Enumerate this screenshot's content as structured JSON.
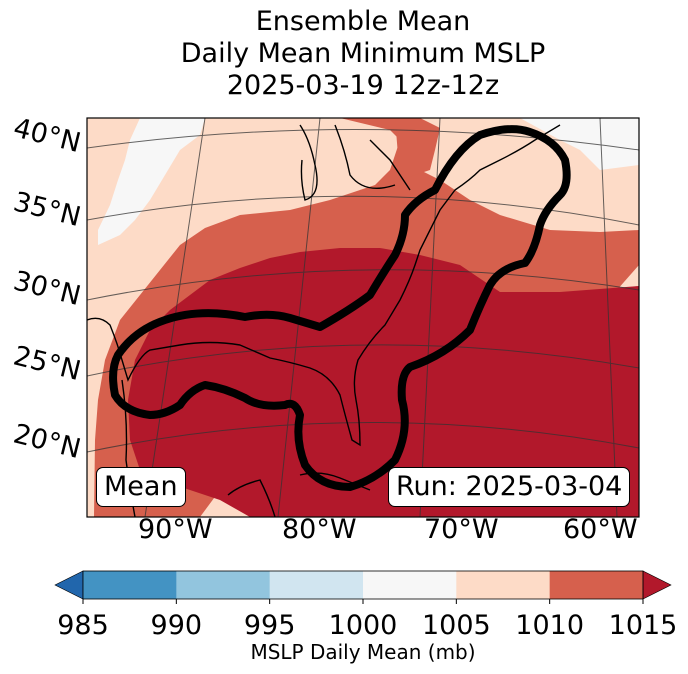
{
  "chart_data": {
    "type": "heatmap",
    "title": [
      "Ensemble Mean",
      "Daily Mean Minimum MSLP",
      "2025-03-19 12z-12z"
    ],
    "projection": "conic map, eastern North America / Gulf of Mexico / western Atlantic",
    "lat_ticks": [
      "40°N",
      "35°N",
      "30°N",
      "25°N",
      "20°N"
    ],
    "lon_ticks": [
      "90°W",
      "80°W",
      "70°W",
      "60°W"
    ],
    "grid": true,
    "colorbar": {
      "label": "MSLP Daily Mean (mb)",
      "levels": [
        985,
        990,
        995,
        1000,
        1005,
        1010,
        1015
      ],
      "tick_labels": [
        "985",
        "990",
        "995",
        "1000",
        "1005",
        "1010",
        "1015"
      ],
      "extend": "both",
      "colors": [
        "#4393c3",
        "#92c5de",
        "#d1e5f0",
        "#f7f7f7",
        "#fddbc7",
        "#d6604d"
      ],
      "under_color": "#2166ac",
      "over_color": "#b2182b",
      "orientation": "horizontal"
    },
    "fields": [
      {
        "name": "region-1000-1005",
        "range": "1000-1005",
        "color": "#f7f7f7",
        "location": "northwest (Great Plains) and far northeast corner"
      },
      {
        "name": "region-1005-1010",
        "range": "1005-1010",
        "color": "#fddbc7",
        "location": "central US, western Gulf edge, Canada/Maine, north Atlantic"
      },
      {
        "name": "region-1010-1015",
        "range": "1010-1015",
        "color": "#d6604d",
        "location": "band over Ohio Valley/Mid-Atlantic and Great Lakes, around Texas/Mexico"
      },
      {
        "name": "region-above-1015",
        "range": ">1015",
        "color": "#b2182b",
        "location": "Southeast US, Gulf of Mexico, Atlantic south of ~37N"
      }
    ],
    "contour": {
      "description": "thick black outline along Gulf coast and US East Coast to Nova Scotia",
      "color": "#000000"
    },
    "annotations": {
      "left_box": "Mean",
      "right_box": "Run: 2025-03-04"
    }
  }
}
